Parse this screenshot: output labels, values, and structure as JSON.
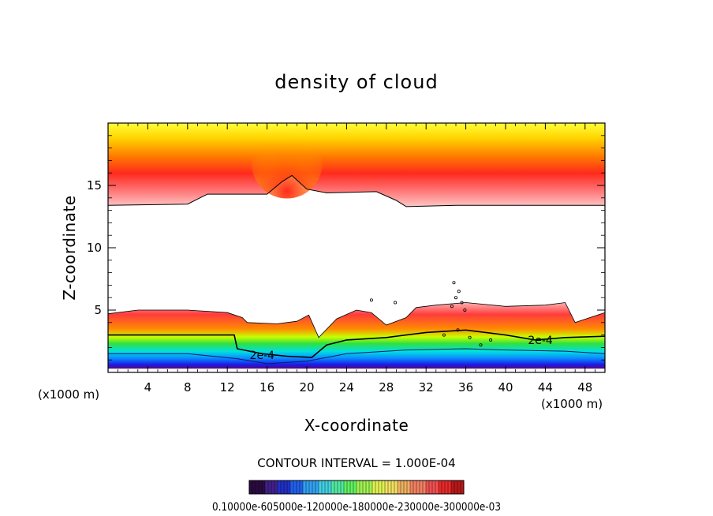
{
  "chart_data": {
    "type": "contour",
    "title": "density of cloud",
    "xlabel": "X-coordinate",
    "ylabel": "Z-coordinate",
    "x_unit_left": "(x1000 m)",
    "x_unit_right": "(x1000 m)",
    "xlim": [
      0,
      50
    ],
    "ylim": [
      0,
      20
    ],
    "x_ticks": [
      4,
      8,
      12,
      16,
      20,
      24,
      28,
      32,
      36,
      40,
      44,
      48
    ],
    "x_tick_labels": [
      "4",
      "8",
      "12",
      "16",
      "20",
      "24",
      "28",
      "32",
      "36",
      "40",
      "44",
      "48"
    ],
    "y_ticks": [
      5,
      10,
      15
    ],
    "y_tick_labels": [
      "5",
      "10",
      "15"
    ],
    "contour_interval_text": "CONTOUR INTERVAL = 1.000E-04",
    "contour_labels": [
      {
        "text": "2e-4",
        "x": 15.5,
        "z": 1.4
      },
      {
        "text": "2e-4",
        "x": 43.5,
        "z": 2.6
      }
    ],
    "colorbar_labels_text": "0.10000e-605000e-120000e-180000e-230000e-300000e-03",
    "upper_cloud_layer": {
      "base_z": [
        [
          0,
          13.4
        ],
        [
          8,
          13.5
        ],
        [
          10,
          14.3
        ],
        [
          14,
          14.3
        ],
        [
          16,
          14.3
        ],
        [
          17.5,
          15.3
        ],
        [
          18.5,
          15.8
        ],
        [
          20,
          14.7
        ],
        [
          22,
          14.4
        ],
        [
          27,
          14.5
        ],
        [
          29,
          13.8
        ],
        [
          30,
          13.3
        ],
        [
          35,
          13.4
        ],
        [
          50,
          13.4
        ]
      ],
      "peak_z": 16.0,
      "top_z": 20.0
    },
    "lower_cloud_layer": {
      "top_z": [
        [
          0,
          4.7
        ],
        [
          3,
          5.0
        ],
        [
          8,
          5.0
        ],
        [
          12,
          4.8
        ],
        [
          13.5,
          4.4
        ],
        [
          14,
          4.0
        ],
        [
          17,
          3.9
        ],
        [
          19,
          4.1
        ],
        [
          20.2,
          4.6
        ],
        [
          21.2,
          2.8
        ],
        [
          23,
          4.3
        ],
        [
          25,
          5.0
        ],
        [
          26.5,
          4.8
        ],
        [
          28,
          3.8
        ],
        [
          30,
          4.4
        ],
        [
          31,
          5.2
        ],
        [
          33,
          5.4
        ],
        [
          36,
          5.6
        ],
        [
          40,
          5.3
        ],
        [
          44,
          5.4
        ],
        [
          46,
          5.6
        ],
        [
          47,
          4.0
        ],
        [
          50,
          4.8
        ]
      ],
      "peak_density_z": 3.6,
      "base_z": 0.3
    }
  },
  "colors": {
    "ramp": [
      "#ffffff",
      "#ffc6c6",
      "#ff8c8c",
      "#ff2a1c",
      "#ff6a00",
      "#ffa800",
      "#ffe600",
      "#ffff40"
    ],
    "lower_ramp": [
      "#5a0a78",
      "#1a1ae8",
      "#0a8cff",
      "#00e0e0",
      "#30e040",
      "#78e830",
      "#c8ff00",
      "#ff8c00",
      "#ff3c3c",
      "#ffb4b4"
    ],
    "colorbar": [
      "#2a0a40",
      "#40208c",
      "#2030c8",
      "#2060e8",
      "#30a0f0",
      "#40d0e0",
      "#50e8a0",
      "#60f060",
      "#a0f050",
      "#e0f050",
      "#f0e060",
      "#f0b060",
      "#f08060",
      "#f05050",
      "#e82828",
      "#b81818"
    ]
  }
}
